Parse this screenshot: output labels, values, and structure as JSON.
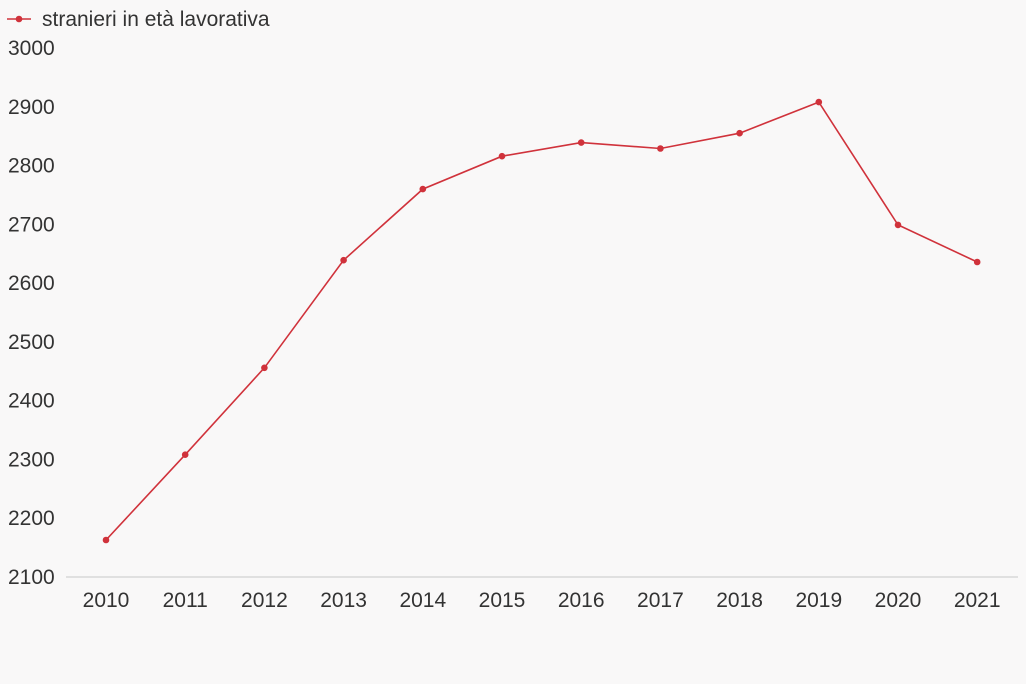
{
  "chart_data": {
    "type": "line",
    "title": "",
    "xlabel": "",
    "ylabel": "",
    "categories": [
      "2010",
      "2011",
      "2012",
      "2013",
      "2014",
      "2015",
      "2016",
      "2017",
      "2018",
      "2019",
      "2020",
      "2021"
    ],
    "series": [
      {
        "name": "stranieri in età lavorativa",
        "color": "#d0323b",
        "values": [
          2163,
          2308,
          2456,
          2639,
          2760,
          2816,
          2839,
          2829,
          2855,
          2908,
          2699,
          2636
        ]
      }
    ],
    "ylim": [
      2100,
      3000
    ],
    "yticks": [
      "3000",
      "2900",
      "2800",
      "2700",
      "2600",
      "2500",
      "2400",
      "2300",
      "2200",
      "2100"
    ],
    "grid": false,
    "legend_position": "top-left"
  },
  "colors": {
    "background": "#f9f8f8",
    "axis": "#d8d8d8",
    "text": "#333333"
  }
}
